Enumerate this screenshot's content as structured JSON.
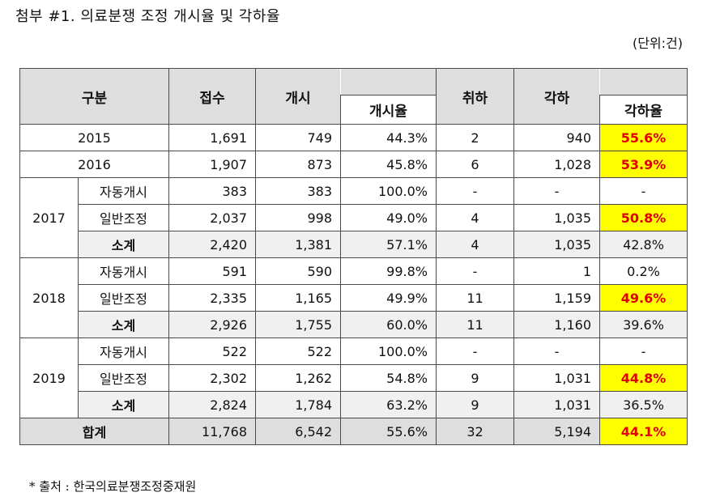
{
  "title": "첨부 #1. 의료분쟁 조정 개시율 및 각하율",
  "unit": "(단위:건)",
  "headers": {
    "category": "구분",
    "received": "접수",
    "started": "개시",
    "start_rate": "개시율",
    "withdrawn": "취하",
    "dismissed": "각하",
    "dismiss_rate": "각하율"
  },
  "rows": [
    {
      "year": "2015",
      "received": "1,691",
      "started": "749",
      "start_rate": "44.3%",
      "withdrawn": "2",
      "dismissed": "940",
      "dismiss_rate": "55.6%"
    },
    {
      "year": "2016",
      "received": "1,907",
      "started": "873",
      "start_rate": "45.8%",
      "withdrawn": "6",
      "dismissed": "1,028",
      "dismiss_rate": "53.9%"
    }
  ],
  "groups": [
    {
      "year": "2017",
      "rows": [
        {
          "label": "자동개시",
          "received": "383",
          "started": "383",
          "start_rate": "100.0%",
          "withdrawn": "-",
          "dismissed": "-",
          "dismiss_rate": "-"
        },
        {
          "label": "일반조정",
          "received": "2,037",
          "started": "998",
          "start_rate": "49.0%",
          "withdrawn": "4",
          "dismissed": "1,035",
          "dismiss_rate": "50.8%"
        },
        {
          "label": "소계",
          "received": "2,420",
          "started": "1,381",
          "start_rate": "57.1%",
          "withdrawn": "4",
          "dismissed": "1,035",
          "dismiss_rate": "42.8%"
        }
      ]
    },
    {
      "year": "2018",
      "rows": [
        {
          "label": "자동개시",
          "received": "591",
          "started": "590",
          "start_rate": "99.8%",
          "withdrawn": "-",
          "dismissed": "1",
          "dismiss_rate": "0.2%"
        },
        {
          "label": "일반조정",
          "received": "2,335",
          "started": "1,165",
          "start_rate": "49.9%",
          "withdrawn": "11",
          "dismissed": "1,159",
          "dismiss_rate": "49.6%"
        },
        {
          "label": "소계",
          "received": "2,926",
          "started": "1,755",
          "start_rate": "60.0%",
          "withdrawn": "11",
          "dismissed": "1,160",
          "dismiss_rate": "39.6%"
        }
      ]
    },
    {
      "year": "2019",
      "rows": [
        {
          "label": "자동개시",
          "received": "522",
          "started": "522",
          "start_rate": "100.0%",
          "withdrawn": "-",
          "dismissed": "-",
          "dismiss_rate": "-"
        },
        {
          "label": "일반조정",
          "received": "2,302",
          "started": "1,262",
          "start_rate": "54.8%",
          "withdrawn": "9",
          "dismissed": "1,031",
          "dismiss_rate": "44.8%"
        },
        {
          "label": "소계",
          "received": "2,824",
          "started": "1,784",
          "start_rate": "63.2%",
          "withdrawn": "9",
          "dismissed": "1,031",
          "dismiss_rate": "36.5%"
        }
      ]
    }
  ],
  "total": {
    "label": "합계",
    "received": "11,768",
    "started": "6,542",
    "start_rate": "55.6%",
    "withdrawn": "32",
    "dismissed": "5,194",
    "dismiss_rate": "44.1%"
  },
  "highlight_color": "#ffff00",
  "highlight_text_color": "#e10000",
  "header_bg": "#dedede",
  "source_note": "* 출처 : 한국의료분쟁조정중재원"
}
